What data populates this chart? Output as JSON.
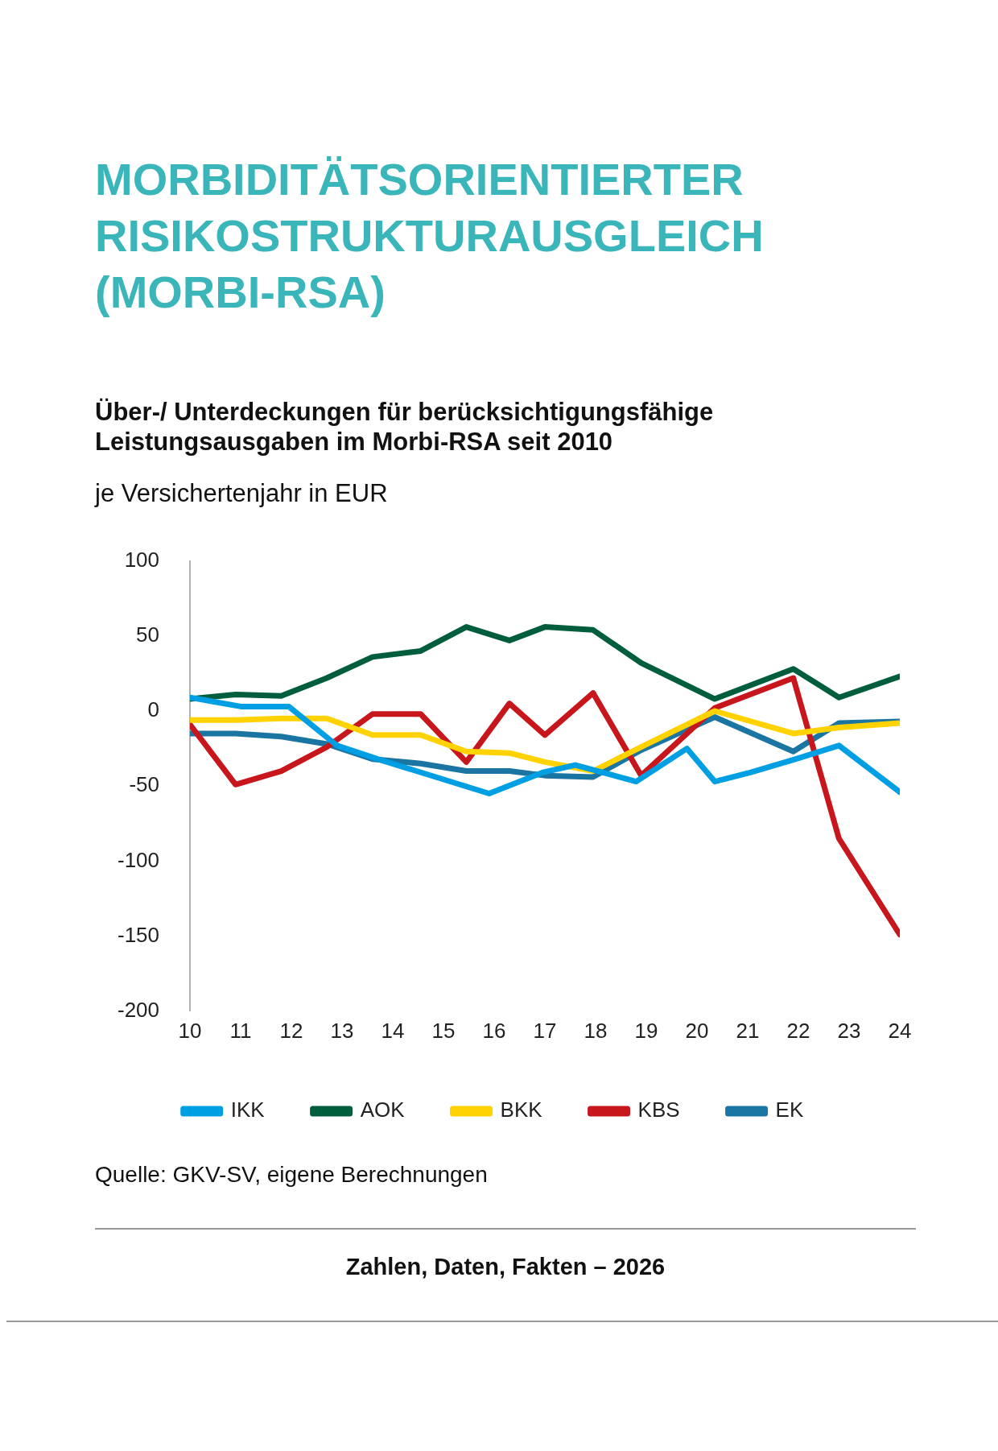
{
  "chart_data": {
    "type": "line",
    "title": "MORBIDITÄTSORIENTIERTER RISIKOSTRUKTURAUSGLEICH (MORBI-RSA)",
    "subtitle": "Über-/ Unterdeckungen für berücksichtigungsfähige Leistungsausgaben im Morbi-RSA seit 2010",
    "ylabel": "je Versichertenjahr in EUR",
    "xlim": [
      10,
      24
    ],
    "xticks": [
      10,
      11,
      12,
      13,
      14,
      15,
      16,
      17,
      18,
      19,
      20,
      21,
      22,
      23,
      24
    ],
    "ylim": [
      -200,
      100
    ],
    "yticks": [
      -200,
      -150,
      -100,
      -50,
      0,
      50,
      100
    ],
    "grid": false,
    "legend": "bottom",
    "marker": "none",
    "line_style": "solid",
    "series": [
      {
        "name": "IKK",
        "color": "#009fe3",
        "x": [
          10,
          11,
          11.95,
          12.9,
          13.7,
          15.9,
          16.95,
          17.6,
          18.8,
          19.8,
          20.35,
          21.05,
          21.95,
          22.8,
          24
        ],
        "values": [
          9,
          3,
          3,
          -23,
          -32,
          -55,
          -41,
          -36,
          -47,
          -25,
          -47,
          -41,
          -32,
          -23,
          -54
        ]
      },
      {
        "name": "AOK",
        "color": "#005e3c",
        "x": [
          10,
          10.9,
          11.8,
          12.7,
          13.6,
          14.55,
          15.45,
          16.3,
          17,
          17.95,
          18.9,
          20.35,
          21.9,
          22.8,
          24
        ],
        "values": [
          8,
          11,
          10,
          22,
          36,
          40,
          56,
          47,
          56,
          54,
          32,
          8,
          28,
          9,
          23
        ]
      },
      {
        "name": "BKK",
        "color": "#ffd200",
        "x": [
          10,
          10.9,
          11.8,
          12.7,
          13.6,
          14.55,
          15.45,
          16.3,
          17,
          17.95,
          18.9,
          20.35,
          21.9,
          22.8,
          24
        ],
        "values": [
          -6,
          -6,
          -5,
          -5,
          -16,
          -16,
          -27,
          -28,
          -34,
          -40,
          -24,
          0,
          -15,
          -11,
          -8
        ]
      },
      {
        "name": "KBS",
        "color": "#c8161d",
        "x": [
          10,
          10.9,
          11.8,
          12.7,
          13.6,
          14.55,
          15.45,
          16.3,
          17,
          17.95,
          18.9,
          20.35,
          21.9,
          22.8,
          24
        ],
        "values": [
          -9,
          -49,
          -40,
          -24,
          -2,
          -2,
          -34,
          5,
          -16,
          12,
          -43,
          2,
          22,
          -85,
          -149
        ]
      },
      {
        "name": "EK",
        "color": "#1b75a3",
        "x": [
          10,
          10.9,
          11.8,
          12.7,
          13.6,
          14.55,
          15.45,
          16.3,
          17,
          17.95,
          18.9,
          20.35,
          21.9,
          22.8,
          24
        ],
        "values": [
          -15,
          -15,
          -17,
          -22,
          -32,
          -35,
          -40,
          -40,
          -43,
          -44,
          -26,
          -4,
          -27,
          -8,
          -7
        ]
      }
    ],
    "annotations": [
      "Quelle: GKV-SV, eigene Berechnungen",
      "Zahlen, Daten, Fakten – 2026"
    ]
  }
}
